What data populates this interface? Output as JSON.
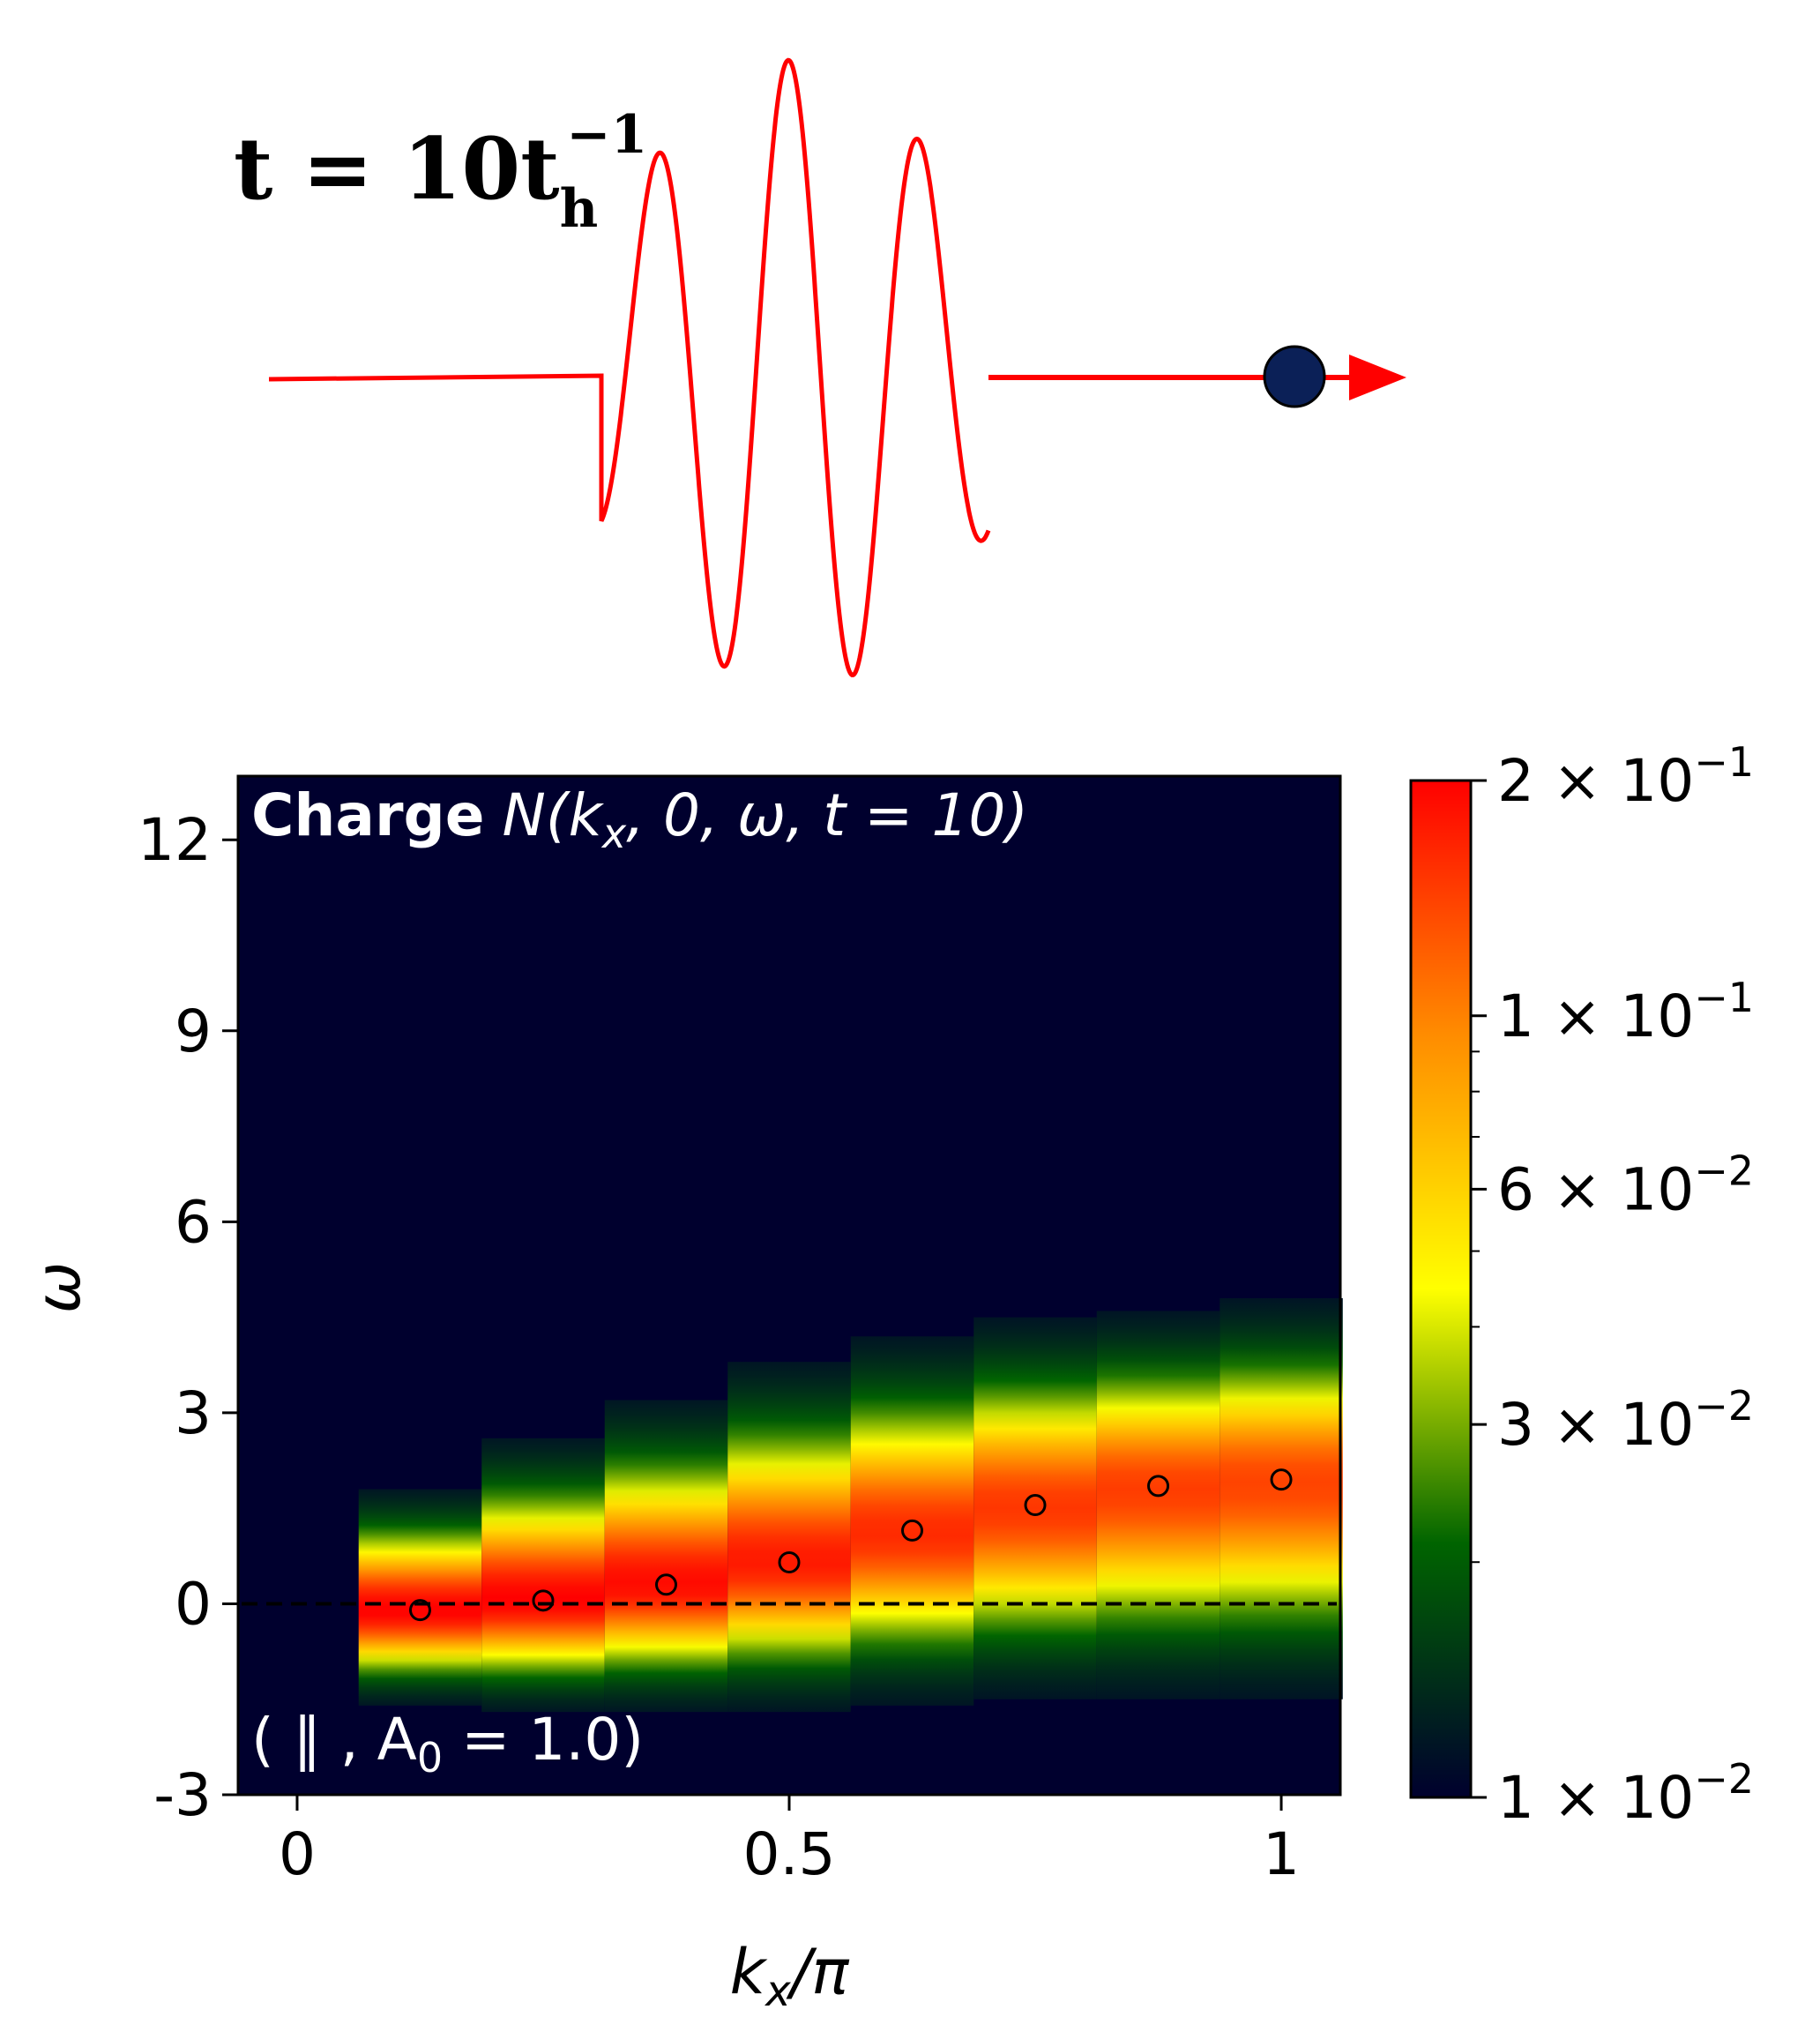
{
  "pulse": {
    "time_label": {
      "prefix": "t = 10t",
      "sub": "h",
      "sup": "−1"
    },
    "line_color": "#ff0000",
    "particle_color": "#0b2057"
  },
  "chart_data": {
    "type": "heatmap",
    "title": "",
    "annotation_top": {
      "bold": "Charge",
      "formula": "N(k_x, 0, ω, t = 10)"
    },
    "annotation_bottom": "( ∥ , A_0 = 1.0)",
    "xlabel": "k_x/π",
    "ylabel": "ω",
    "xlim": [
      -0.06,
      1.06
    ],
    "ylim": [
      -3,
      13
    ],
    "xticks": [
      {
        "v": 0,
        "label": "0"
      },
      {
        "v": 0.5,
        "label": "0.5"
      },
      {
        "v": 1,
        "label": "1"
      }
    ],
    "yticks": [
      {
        "v": -3,
        "label": "-3"
      },
      {
        "v": 0,
        "label": "0"
      },
      {
        "v": 3,
        "label": "3"
      },
      {
        "v": 6,
        "label": "6"
      },
      {
        "v": 9,
        "label": "9"
      },
      {
        "v": 12,
        "label": "12"
      }
    ],
    "background_color": "#00002e",
    "colormap": [
      "#00002e",
      "#006400",
      "#ffff00",
      "#ff8c00",
      "#ff0000"
    ],
    "zero_line": {
      "y": 0,
      "style": "dashed",
      "color": "#000000"
    },
    "columns": [
      {
        "kx": 0.125,
        "omega_min": -1.6,
        "omega_max": 1.8,
        "peak_omega": -0.1,
        "peak_value": 0.2
      },
      {
        "kx": 0.25,
        "omega_min": -1.7,
        "omega_max": 2.6,
        "peak_omega": 0.05,
        "peak_value": 0.2
      },
      {
        "kx": 0.375,
        "omega_min": -1.7,
        "omega_max": 3.2,
        "peak_omega": 0.3,
        "peak_value": 0.19
      },
      {
        "kx": 0.5,
        "omega_min": -1.7,
        "omega_max": 3.8,
        "peak_omega": 0.65,
        "peak_value": 0.175
      },
      {
        "kx": 0.625,
        "omega_min": -1.6,
        "omega_max": 4.2,
        "peak_omega": 1.1,
        "peak_value": 0.16
      },
      {
        "kx": 0.75,
        "omega_min": -1.5,
        "omega_max": 4.5,
        "peak_omega": 1.5,
        "peak_value": 0.15
      },
      {
        "kx": 0.875,
        "omega_min": -1.5,
        "omega_max": 4.6,
        "peak_omega": 1.8,
        "peak_value": 0.145
      },
      {
        "kx": 1.0,
        "omega_min": -1.5,
        "omega_max": 4.8,
        "peak_omega": 1.9,
        "peak_value": 0.14
      }
    ],
    "markers": {
      "shape": "open-circle",
      "color": "#000000",
      "points": [
        {
          "x": 0.125,
          "y": -0.1
        },
        {
          "x": 0.25,
          "y": 0.05
        },
        {
          "x": 0.375,
          "y": 0.3
        },
        {
          "x": 0.5,
          "y": 0.65
        },
        {
          "x": 0.625,
          "y": 1.15
        },
        {
          "x": 0.75,
          "y": 1.55
        },
        {
          "x": 0.875,
          "y": 1.85
        },
        {
          "x": 1.0,
          "y": 1.95
        }
      ]
    },
    "colorbar": {
      "scale": "log",
      "range": [
        0.01,
        0.2
      ],
      "ticks": [
        {
          "v": 0.2,
          "mant": "2",
          "exp": "−1"
        },
        {
          "v": 0.1,
          "mant": "1",
          "exp": "−1"
        },
        {
          "v": 0.06,
          "mant": "6",
          "exp": "−2"
        },
        {
          "v": 0.03,
          "mant": "3",
          "exp": "−2"
        },
        {
          "v": 0.01,
          "mant": "1",
          "exp": "−2"
        }
      ],
      "minor_ticks": [
        0.02,
        0.04,
        0.05,
        0.07,
        0.08,
        0.09
      ]
    }
  }
}
